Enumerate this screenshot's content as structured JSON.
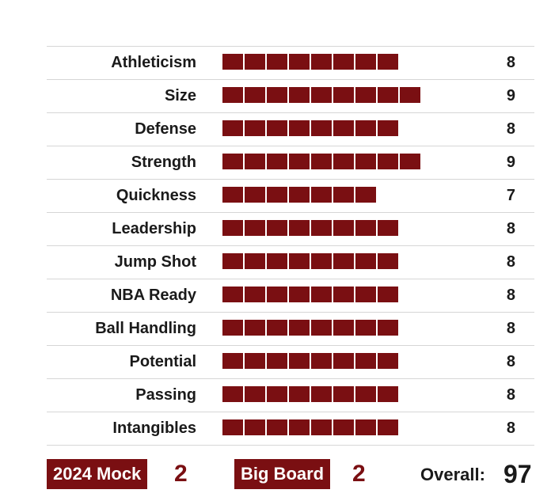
{
  "chart_data": {
    "type": "bar",
    "max_value": 10,
    "bar_color": "#7a0f12",
    "categories": [
      "Athleticism",
      "Size",
      "Defense",
      "Strength",
      "Quickness",
      "Leadership",
      "Jump Shot",
      "NBA Ready",
      "Ball Handling",
      "Potential",
      "Passing",
      "Intangibles"
    ],
    "values": [
      8,
      9,
      8,
      9,
      7,
      8,
      8,
      8,
      8,
      8,
      8,
      8
    ]
  },
  "footer": {
    "mock_label": "2024 Mock",
    "mock_rank": "2",
    "board_label": "Big Board",
    "board_rank": "2",
    "overall_label": "Overall:",
    "overall_value": "97"
  },
  "colors": {
    "accent": "#7a0f12",
    "divider": "#d6d6d6",
    "text": "#1a1a1a"
  }
}
